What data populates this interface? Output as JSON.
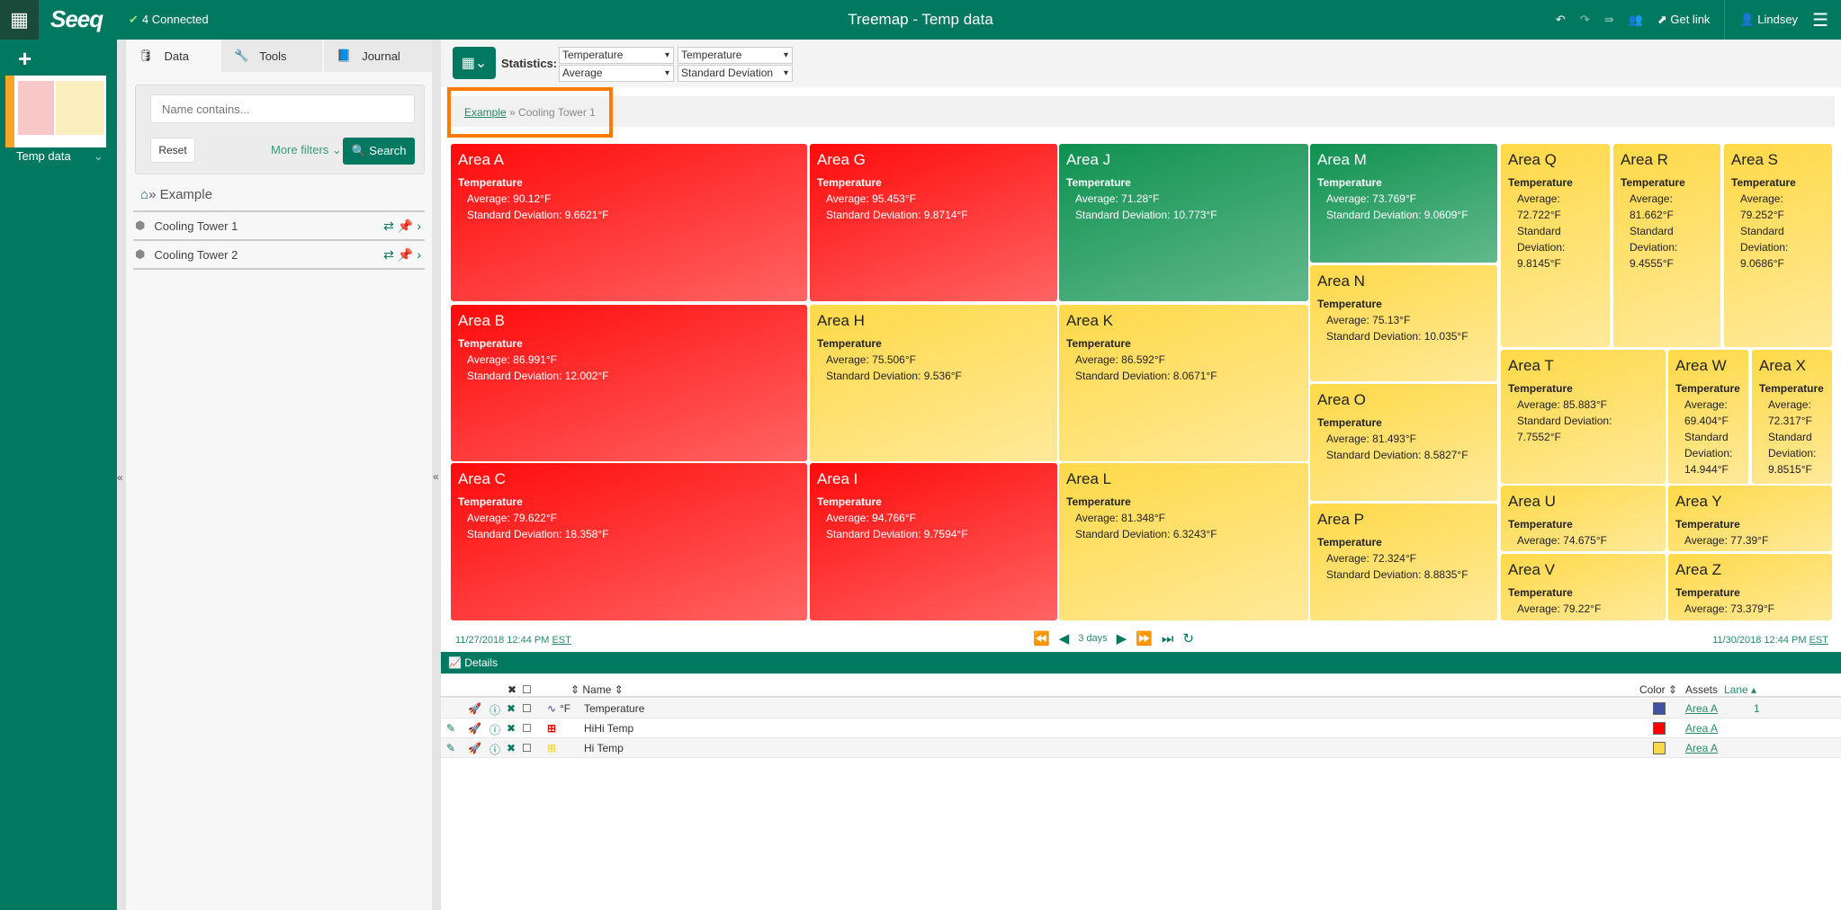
{
  "header": {
    "connected": "4 Connected",
    "title": "Treemap - Temp data",
    "get_link": "Get link",
    "user": "Lindsey"
  },
  "worksheet": {
    "label": "Temp data"
  },
  "panel": {
    "tabs": [
      "Data",
      "Tools",
      "Journal"
    ],
    "search_placeholder": "Name contains...",
    "reset": "Reset",
    "more_filters": "More filters",
    "search": "Search",
    "breadcrumb": "Example",
    "assets": [
      "Cooling Tower 1",
      "Cooling Tower 2"
    ]
  },
  "toolbar": {
    "statistics_label": "Statistics:",
    "select1_top": "Temperature",
    "select1_bottom": "Average",
    "select2_top": "Temperature",
    "select2_bottom": "Standard Deviation"
  },
  "breadcrumb": {
    "root": "Example",
    "current": "Cooling Tower 1"
  },
  "colors": {
    "red": "#ff1a1a",
    "green": "#1f9a5c",
    "yellow": "#ffdd5c",
    "brand": "#007960",
    "highlight": "#ff7b00"
  },
  "treemap": {
    "tiles": [
      {
        "name": "Area A",
        "status": "red",
        "metric": "Temperature",
        "avg": "Average: 90.12°F",
        "sd": "Standard Deviation: 9.6621°F"
      },
      {
        "name": "Area B",
        "status": "red",
        "metric": "Temperature",
        "avg": "Average: 86.991°F",
        "sd": "Standard Deviation: 12.002°F"
      },
      {
        "name": "Area C",
        "status": "red",
        "metric": "Temperature",
        "avg": "Average: 79.622°F",
        "sd": "Standard Deviation: 18.358°F"
      },
      {
        "name": "Area G",
        "status": "red",
        "metric": "Temperature",
        "avg": "Average: 95.453°F",
        "sd": "Standard Deviation: 9.8714°F"
      },
      {
        "name": "Area H",
        "status": "yellow",
        "metric": "Temperature",
        "avg": "Average: 75.506°F",
        "sd": "Standard Deviation: 9.536°F"
      },
      {
        "name": "Area I",
        "status": "red",
        "metric": "Temperature",
        "avg": "Average: 94.766°F",
        "sd": "Standard Deviation: 9.7594°F"
      },
      {
        "name": "Area J",
        "status": "green",
        "metric": "Temperature",
        "avg": "Average: 71.28°F",
        "sd": "Standard Deviation: 10.773°F"
      },
      {
        "name": "Area K",
        "status": "yellow",
        "metric": "Temperature",
        "avg": "Average: 86.592°F",
        "sd": "Standard Deviation: 8.0671°F"
      },
      {
        "name": "Area L",
        "status": "yellow",
        "metric": "Temperature",
        "avg": "Average: 81.348°F",
        "sd": "Standard Deviation: 6.3243°F"
      },
      {
        "name": "Area M",
        "status": "green",
        "metric": "Temperature",
        "avg": "Average: 73.769°F",
        "sd": "Standard Deviation: 9.0609°F"
      },
      {
        "name": "Area N",
        "status": "yellow",
        "metric": "Temperature",
        "avg": "Average: 75.13°F",
        "sd": "Standard Deviation: 10.035°F"
      },
      {
        "name": "Area O",
        "status": "yellow",
        "metric": "Temperature",
        "avg": "Average: 81.493°F",
        "sd": "Standard Deviation: 8.5827°F"
      },
      {
        "name": "Area P",
        "status": "yellow",
        "metric": "Temperature",
        "avg": "Average: 72.324°F",
        "sd": "Standard Deviation: 8.8835°F"
      },
      {
        "name": "Area Q",
        "status": "yellow",
        "metric": "Temperature",
        "avg": "Average: 72.722°F",
        "sd": "Standard Deviation: 9.8145°F"
      },
      {
        "name": "Area R",
        "status": "yellow",
        "metric": "Temperature",
        "avg": "Average: 81.662°F",
        "sd": "Standard Deviation: 9.4555°F"
      },
      {
        "name": "Area S",
        "status": "yellow",
        "metric": "Temperature",
        "avg": "Average: 79.252°F",
        "sd": "Standard Deviation: 9.0686°F"
      },
      {
        "name": "Area T",
        "status": "yellow",
        "metric": "Temperature",
        "avg": "Average: 85.883°F",
        "sd": "Standard Deviation: 7.7552°F"
      },
      {
        "name": "Area W",
        "status": "yellow",
        "metric": "Temperature",
        "avg": "Average: 69.404°F",
        "sd": "Standard Deviation: 14.944°F"
      },
      {
        "name": "Area X",
        "status": "yellow",
        "metric": "Temperature",
        "avg": "Average: 72.317°F",
        "sd": "Standard Deviation: 9.8515°F"
      },
      {
        "name": "Area U",
        "status": "yellow",
        "metric": "Temperature",
        "avg": "Average: 74.675°F"
      },
      {
        "name": "Area Y",
        "status": "yellow",
        "metric": "Temperature",
        "avg": "Average: 77.39°F"
      },
      {
        "name": "Area V",
        "status": "yellow",
        "metric": "Temperature",
        "avg": "Average: 79.22°F"
      },
      {
        "name": "Area Z",
        "status": "yellow",
        "metric": "Temperature",
        "avg": "Average: 73.379°F"
      }
    ]
  },
  "timebar": {
    "start": "11/27/2018 12:44 PM",
    "end": "11/30/2018 12:44 PM",
    "tz": "EST",
    "duration": "3 days"
  },
  "details": {
    "title": "Details",
    "columns": {
      "name": "Name",
      "color": "Color",
      "assets": "Assets",
      "lane": "Lane"
    },
    "rows": [
      {
        "unit": "°F",
        "name": "Temperature",
        "color": "#3f51a0",
        "asset": "Area A",
        "lane": "1"
      },
      {
        "unit": "",
        "name": "HiHi Temp",
        "color": "#ff0000",
        "asset": "Area A",
        "lane": ""
      },
      {
        "unit": "",
        "name": "Hi Temp",
        "color": "#ffd84a",
        "asset": "Area A",
        "lane": ""
      }
    ]
  }
}
